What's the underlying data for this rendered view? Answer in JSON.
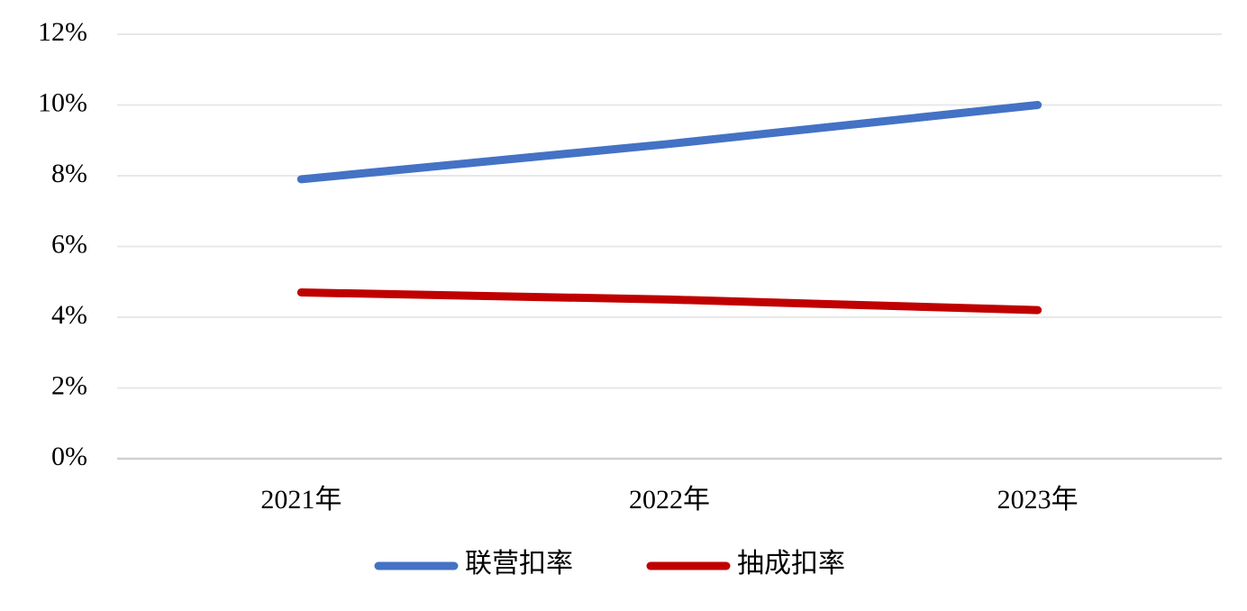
{
  "chart_data": {
    "type": "line",
    "categories": [
      "2021年",
      "2022年",
      "2023年"
    ],
    "series": [
      {
        "name": "联营扣率",
        "color": "#4472c4",
        "values": [
          7.9,
          8.9,
          10.0
        ]
      },
      {
        "name": "抽成扣率",
        "color": "#c00000",
        "values": [
          4.7,
          4.5,
          4.2
        ]
      }
    ],
    "ylim": [
      0,
      12
    ],
    "yticks": [
      {
        "value": 0,
        "label": "0%"
      },
      {
        "value": 2,
        "label": "2%"
      },
      {
        "value": 4,
        "label": "4%"
      },
      {
        "value": 6,
        "label": "6%"
      },
      {
        "value": 8,
        "label": "8%"
      },
      {
        "value": 10,
        "label": "10%"
      },
      {
        "value": 12,
        "label": "12%"
      }
    ],
    "grid": true,
    "legend": "bottom"
  }
}
